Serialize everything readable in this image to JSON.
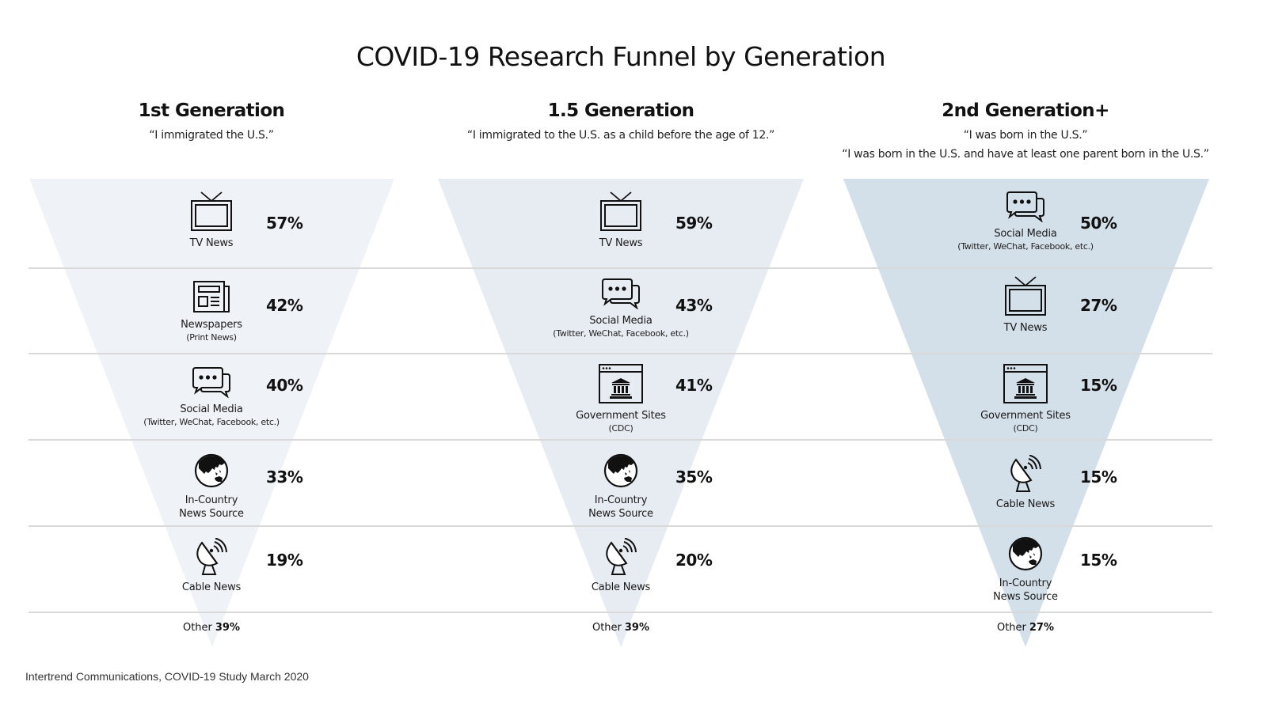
{
  "chart_data": {
    "type": "funnel",
    "title": "COVID-19 Research Funnel by Generation",
    "source": "Intertrend Communications, COVID-19 Study March 2020",
    "colors": [
      "#eff3f7",
      "#e7ecf2",
      "#d4e0e9"
    ],
    "separator_color": "#d9d9d9",
    "groups": [
      {
        "name": "1st Generation",
        "quotes": [
          "“I immigrated the U.S.”"
        ],
        "items": [
          {
            "label": "TV News",
            "sub": "",
            "icon": "tv-icon",
            "value": 57,
            "value_label": "57%"
          },
          {
            "label": "Newspapers",
            "sub": "(Print News)",
            "icon": "newspaper-icon",
            "value": 42,
            "value_label": "42%"
          },
          {
            "label": "Social Media",
            "sub": "(Twitter, WeChat, Facebook, etc.)",
            "icon": "chat-bubbles-icon",
            "value": 40,
            "value_label": "40%"
          },
          {
            "label": "In-Country",
            "label2": "News Source",
            "sub": "",
            "icon": "globe-icon",
            "value": 33,
            "value_label": "33%"
          },
          {
            "label": "Cable News",
            "sub": "",
            "icon": "satellite-dish-icon",
            "value": 19,
            "value_label": "19%"
          }
        ],
        "other": {
          "label": "Other",
          "value": 39,
          "value_label": "39%"
        }
      },
      {
        "name": "1.5 Generation",
        "quotes": [
          "“I immigrated to the U.S. as a child before the age of 12.”"
        ],
        "items": [
          {
            "label": "TV News",
            "sub": "",
            "icon": "tv-icon",
            "value": 59,
            "value_label": "59%"
          },
          {
            "label": "Social Media",
            "sub": "(Twitter, WeChat, Facebook, etc.)",
            "icon": "chat-bubbles-icon",
            "value": 43,
            "value_label": "43%"
          },
          {
            "label": "Government Sites",
            "sub": "(CDC)",
            "icon": "government-site-icon",
            "value": 41,
            "value_label": "41%"
          },
          {
            "label": "In-Country",
            "label2": "News Source",
            "sub": "",
            "icon": "globe-icon",
            "value": 35,
            "value_label": "35%"
          },
          {
            "label": "Cable News",
            "sub": "",
            "icon": "satellite-dish-icon",
            "value": 20,
            "value_label": "20%"
          }
        ],
        "other": {
          "label": "Other",
          "value": 39,
          "value_label": "39%"
        }
      },
      {
        "name": "2nd Generation+",
        "quotes": [
          "“I was born in the U.S.”",
          "“I was born in the U.S. and have at least one parent born in the U.S.”"
        ],
        "items": [
          {
            "label": "Social Media",
            "sub": "(Twitter, WeChat, Facebook, etc.)",
            "icon": "chat-bubbles-icon",
            "value": 50,
            "value_label": "50%"
          },
          {
            "label": "TV News",
            "sub": "",
            "icon": "tv-icon",
            "value": 27,
            "value_label": "27%"
          },
          {
            "label": "Government Sites",
            "sub": "(CDC)",
            "icon": "government-site-icon",
            "value": 15,
            "value_label": "15%"
          },
          {
            "label": "Cable News",
            "sub": "",
            "icon": "satellite-dish-icon",
            "value": 15,
            "value_label": "15%"
          },
          {
            "label": "In-Country",
            "label2": "News Source",
            "sub": "",
            "icon": "globe-icon",
            "value": 15,
            "value_label": "15%"
          }
        ],
        "other": {
          "label": "Other",
          "value": 27,
          "value_label": "27%"
        }
      }
    ]
  }
}
